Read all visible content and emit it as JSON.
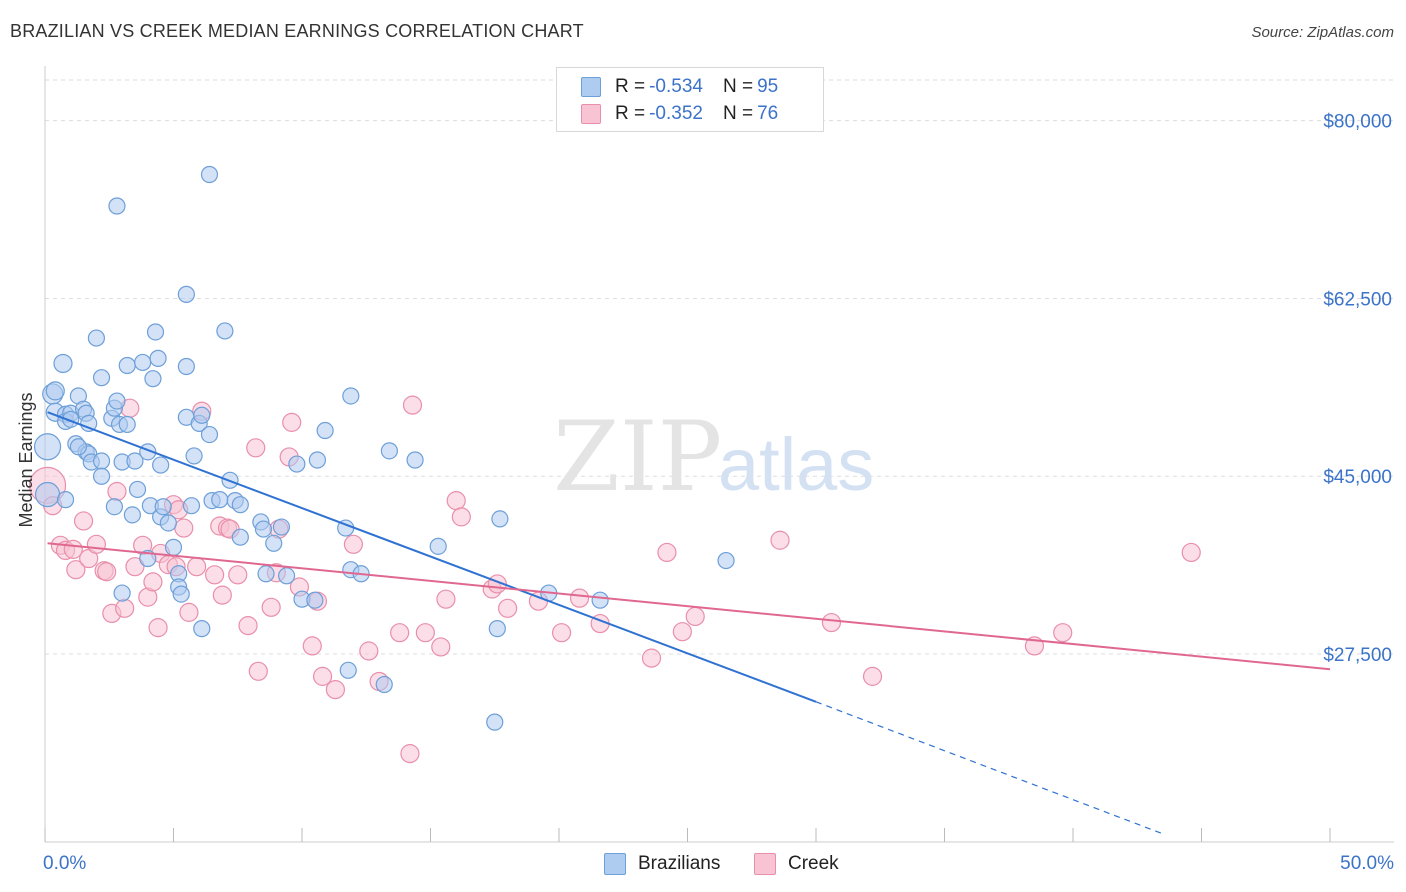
{
  "header": {
    "title": "BRAZILIAN VS CREEK MEDIAN EARNINGS CORRELATION CHART",
    "source": "Source: ZipAtlas.com"
  },
  "watermark": {
    "zip": "ZIP",
    "atlas": "atlas"
  },
  "legend": {
    "rows": [
      {
        "r_label": "R =",
        "r_value": "-0.534",
        "n_label": "N =",
        "n_value": "95"
      },
      {
        "r_label": "R =",
        "r_value": "-0.352",
        "n_label": "N =",
        "n_value": "76"
      }
    ],
    "bottom": [
      "Brazilians",
      "Creek"
    ]
  },
  "colors": {
    "brazilians_fill": "#aecbf0",
    "brazilians_stroke": "#6d9fd8",
    "brazilians_line": "#2f72d2",
    "creek_fill": "#f8c3d3",
    "creek_stroke": "#e98fab",
    "creek_line": "#e06890",
    "axis_text": "#3b73c8",
    "grid": "#dddddd"
  },
  "chart_data": {
    "type": "scatter",
    "title": "BRAZILIAN VS CREEK MEDIAN EARNINGS CORRELATION CHART",
    "xlabel": "",
    "ylabel": "Median Earnings",
    "xlim": [
      0,
      50
    ],
    "ylim": [
      9000,
      84000
    ],
    "x_tick_labels": [
      "0.0%",
      "50.0%"
    ],
    "y_ticks": [
      80000,
      62500,
      45000,
      27500
    ],
    "y_tick_labels": [
      "$80,000",
      "$62,500",
      "$45,000",
      "$27,500"
    ],
    "series": [
      {
        "name": "Brazilians",
        "R": -0.534,
        "N": 95,
        "trend": {
          "x0": 0.1,
          "y0": 51300,
          "x1": 30,
          "y1": 22800,
          "dash_to_x": 43.5,
          "dash_to_y": 9800
        },
        "points": [
          [
            0.1,
            47900,
            13
          ],
          [
            0.1,
            43200,
            12
          ],
          [
            0.3,
            53100,
            10
          ],
          [
            0.4,
            53400,
            9
          ],
          [
            0.7,
            56100,
            9
          ],
          [
            0.4,
            51300,
            9
          ],
          [
            0.8,
            51100,
            8
          ],
          [
            0.8,
            50400,
            8
          ],
          [
            1.0,
            51200,
            8
          ],
          [
            1.3,
            52900,
            8
          ],
          [
            1.0,
            50600,
            8
          ],
          [
            1.2,
            48200,
            8
          ],
          [
            1.5,
            51600,
            8
          ],
          [
            1.6,
            51200,
            8
          ],
          [
            1.7,
            50200,
            8
          ],
          [
            1.6,
            47400,
            8
          ],
          [
            1.7,
            47200,
            8
          ],
          [
            1.8,
            46400,
            8
          ],
          [
            2.0,
            58600,
            8
          ],
          [
            2.2,
            54700,
            8
          ],
          [
            2.2,
            46500,
            8
          ],
          [
            2.2,
            45000,
            8
          ],
          [
            2.6,
            50700,
            8
          ],
          [
            2.7,
            51700,
            8
          ],
          [
            2.8,
            52400,
            8
          ],
          [
            2.9,
            50100,
            8
          ],
          [
            3.0,
            46400,
            8
          ],
          [
            3.2,
            55900,
            8
          ],
          [
            3.5,
            46500,
            8
          ],
          [
            3.6,
            43700,
            8
          ],
          [
            3.2,
            50100,
            8
          ],
          [
            2.7,
            42000,
            8
          ],
          [
            3.8,
            56200,
            8
          ],
          [
            4.0,
            47400,
            8
          ],
          [
            4.2,
            54600,
            8
          ],
          [
            4.3,
            59200,
            8
          ],
          [
            4.4,
            56600,
            8
          ],
          [
            4.5,
            46100,
            8
          ],
          [
            4.1,
            42100,
            8
          ],
          [
            4.5,
            41000,
            8
          ],
          [
            4.8,
            40400,
            8
          ],
          [
            5.0,
            38000,
            8
          ],
          [
            5.2,
            35400,
            8
          ],
          [
            5.2,
            34100,
            8
          ],
          [
            5.3,
            33400,
            8
          ],
          [
            5.5,
            55800,
            8
          ],
          [
            5.5,
            50800,
            8
          ],
          [
            5.7,
            42100,
            8
          ],
          [
            6.0,
            50200,
            8
          ],
          [
            6.1,
            51000,
            8
          ],
          [
            6.4,
            49100,
            8
          ],
          [
            6.5,
            42600,
            8
          ],
          [
            6.8,
            42700,
            8
          ],
          [
            7.0,
            59300,
            8
          ],
          [
            7.2,
            44600,
            8
          ],
          [
            7.4,
            42600,
            8
          ],
          [
            7.6,
            39000,
            8
          ],
          [
            7.6,
            42200,
            8
          ],
          [
            6.4,
            74700,
            8
          ],
          [
            5.5,
            62900,
            8
          ],
          [
            4.6,
            42000,
            8
          ],
          [
            6.1,
            30000,
            8
          ],
          [
            4.0,
            36900,
            8
          ],
          [
            3.0,
            33500,
            8
          ],
          [
            8.4,
            40500,
            8
          ],
          [
            8.5,
            39800,
            8
          ],
          [
            8.6,
            35400,
            8
          ],
          [
            9.2,
            40000,
            8
          ],
          [
            9.4,
            35200,
            8
          ],
          [
            8.9,
            38400,
            8
          ],
          [
            9.8,
            46200,
            8
          ],
          [
            10.0,
            32900,
            8
          ],
          [
            10.5,
            32800,
            8
          ],
          [
            10.6,
            46600,
            8
          ],
          [
            10.9,
            49500,
            8
          ],
          [
            11.7,
            39900,
            8
          ],
          [
            11.9,
            35800,
            8
          ],
          [
            12.3,
            35400,
            8
          ],
          [
            11.9,
            52900,
            8
          ],
          [
            11.8,
            25900,
            8
          ],
          [
            13.2,
            24500,
            8
          ],
          [
            13.4,
            47500,
            8
          ],
          [
            14.4,
            46600,
            8
          ],
          [
            15.3,
            38100,
            8
          ],
          [
            17.6,
            30000,
            8
          ],
          [
            17.7,
            40800,
            8
          ],
          [
            17.5,
            20800,
            8
          ],
          [
            19.6,
            33500,
            8
          ],
          [
            21.6,
            32800,
            8
          ],
          [
            26.5,
            36700,
            8
          ],
          [
            2.8,
            71600,
            8
          ],
          [
            1.3,
            47900,
            8
          ],
          [
            0.8,
            42700,
            8
          ],
          [
            5.8,
            47000,
            8
          ],
          [
            3.4,
            41200,
            8
          ]
        ]
      },
      {
        "name": "Creek",
        "R": -0.352,
        "N": 76,
        "trend": {
          "x0": 0.1,
          "y0": 38400,
          "x1": 50,
          "y1": 26000
        },
        "points": [
          [
            0.1,
            44100,
            18
          ],
          [
            0.3,
            42100,
            9
          ],
          [
            0.6,
            38200,
            9
          ],
          [
            0.8,
            37700,
            9
          ],
          [
            1.1,
            37800,
            9
          ],
          [
            1.2,
            35800,
            9
          ],
          [
            1.5,
            40600,
            9
          ],
          [
            1.7,
            36900,
            9
          ],
          [
            2.0,
            38300,
            9
          ],
          [
            2.3,
            35700,
            9
          ],
          [
            2.4,
            35600,
            9
          ],
          [
            2.6,
            31500,
            9
          ],
          [
            2.8,
            43500,
            9
          ],
          [
            3.1,
            32000,
            9
          ],
          [
            3.3,
            51700,
            9
          ],
          [
            3.5,
            36100,
            9
          ],
          [
            3.8,
            38200,
            9
          ],
          [
            4.0,
            33100,
            9
          ],
          [
            4.2,
            34600,
            9
          ],
          [
            4.4,
            30100,
            9
          ],
          [
            4.5,
            37400,
            9
          ],
          [
            4.8,
            36300,
            9
          ],
          [
            5.0,
            42200,
            9
          ],
          [
            5.1,
            36100,
            9
          ],
          [
            5.2,
            41700,
            9
          ],
          [
            5.4,
            39900,
            9
          ],
          [
            5.6,
            31600,
            9
          ],
          [
            5.9,
            36100,
            9
          ],
          [
            6.1,
            51400,
            9
          ],
          [
            6.6,
            35300,
            9
          ],
          [
            6.8,
            40100,
            9
          ],
          [
            6.9,
            33300,
            9
          ],
          [
            7.1,
            39900,
            9
          ],
          [
            7.2,
            39800,
            9
          ],
          [
            7.5,
            35300,
            9
          ],
          [
            7.9,
            30300,
            9
          ],
          [
            8.2,
            47800,
            9
          ],
          [
            8.3,
            25800,
            9
          ],
          [
            8.8,
            32100,
            9
          ],
          [
            9.0,
            35500,
            9
          ],
          [
            9.1,
            39800,
            9
          ],
          [
            9.5,
            46900,
            9
          ],
          [
            9.6,
            50300,
            9
          ],
          [
            9.9,
            34100,
            9
          ],
          [
            10.4,
            28300,
            9
          ],
          [
            10.6,
            32700,
            9
          ],
          [
            10.8,
            25300,
            9
          ],
          [
            11.3,
            24000,
            9
          ],
          [
            12.0,
            38300,
            9
          ],
          [
            12.6,
            27800,
            9
          ],
          [
            13.0,
            24800,
            9
          ],
          [
            13.8,
            29600,
            9
          ],
          [
            14.3,
            52000,
            9
          ],
          [
            14.8,
            29600,
            9
          ],
          [
            15.4,
            28200,
            9
          ],
          [
            15.6,
            32900,
            9
          ],
          [
            16.0,
            42600,
            9
          ],
          [
            16.2,
            41000,
            9
          ],
          [
            17.4,
            33900,
            9
          ],
          [
            17.6,
            34400,
            9
          ],
          [
            18.0,
            32000,
            9
          ],
          [
            19.2,
            32700,
            9
          ],
          [
            20.1,
            29600,
            9
          ],
          [
            20.8,
            33000,
            9
          ],
          [
            21.6,
            30500,
            9
          ],
          [
            23.6,
            27100,
            9
          ],
          [
            24.2,
            37500,
            9
          ],
          [
            24.8,
            29700,
            9
          ],
          [
            25.3,
            31200,
            9
          ],
          [
            28.6,
            38700,
            9
          ],
          [
            30.6,
            30600,
            9
          ],
          [
            32.2,
            25300,
            9
          ],
          [
            38.5,
            28300,
            9
          ],
          [
            39.6,
            29600,
            9
          ],
          [
            44.6,
            37500,
            9
          ],
          [
            14.2,
            17700,
            9
          ]
        ]
      }
    ]
  }
}
